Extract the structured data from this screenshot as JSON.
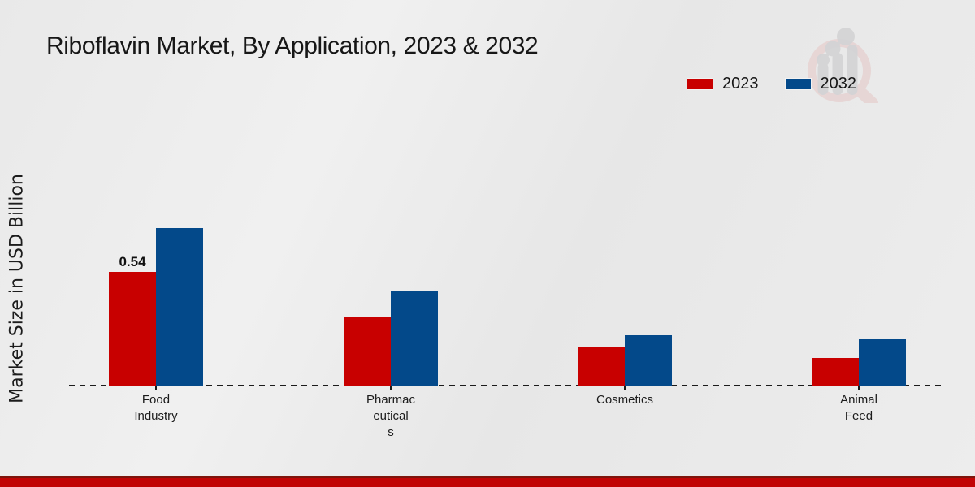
{
  "header": {
    "title": "Riboflavin Market, By Application, 2023 & 2032"
  },
  "legend": {
    "items": [
      {
        "label": "2023",
        "color": "#c80000"
      },
      {
        "label": "2032",
        "color": "#03498a"
      }
    ]
  },
  "watermark": {
    "icon": "magnifier-bar-chart-logo",
    "ring_color": "#e5c6c5",
    "bars_color": "#d3d3d5"
  },
  "footer": {
    "accent_color": "#c10404"
  },
  "chart_data": {
    "type": "bar",
    "title": "Riboflavin Market, By Application, 2023 & 2032",
    "xlabel": "",
    "ylabel": "Market Size in USD Billion",
    "categories": [
      "Food Industry",
      "Pharmaceuticals",
      "Cosmetics",
      "Animal Feed"
    ],
    "category_display_lines": [
      [
        "Food",
        "Industry"
      ],
      [
        "Pharmac",
        "eutical",
        "s"
      ],
      [
        "Cosmetics"
      ],
      [
        "Animal",
        "Feed"
      ]
    ],
    "series": [
      {
        "name": "2023",
        "color": "#c80000",
        "values": [
          0.54,
          0.33,
          0.18,
          0.13
        ]
      },
      {
        "name": "2032",
        "color": "#03498a",
        "values": [
          0.75,
          0.45,
          0.24,
          0.22
        ]
      }
    ],
    "shown_value_labels": [
      {
        "category_index": 0,
        "series_index": 0,
        "text": "0.54"
      }
    ],
    "ylim": [
      0,
      0.8
    ],
    "grid": false,
    "legend_position": "top-right",
    "baseline_style": "dashed"
  }
}
